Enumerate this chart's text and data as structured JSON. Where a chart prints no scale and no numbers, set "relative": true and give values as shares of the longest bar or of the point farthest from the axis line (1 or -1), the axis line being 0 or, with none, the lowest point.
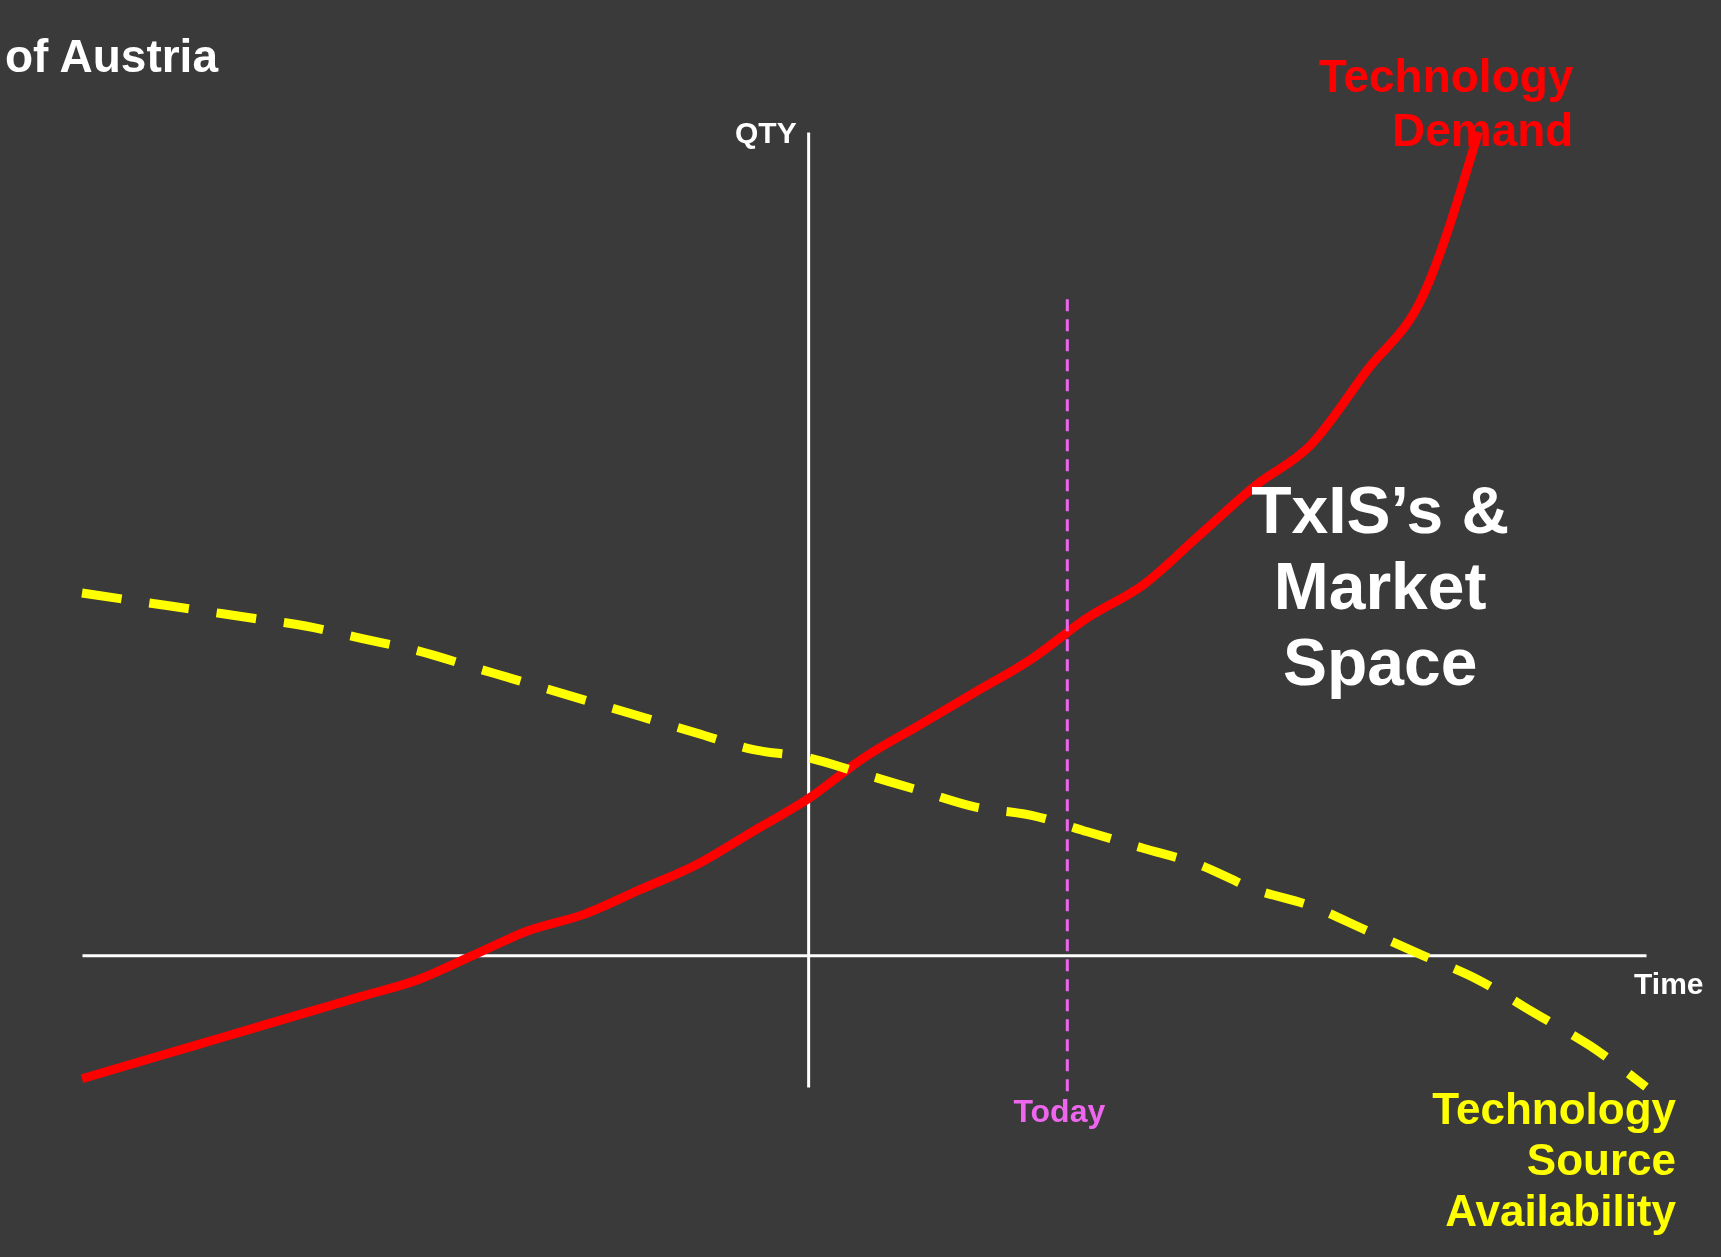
{
  "chart_data": {
    "type": "line",
    "title": "of Austria",
    "xlabel": "Time",
    "ylabel": "QTY",
    "relative": true,
    "categories": [
      null,
      null,
      null,
      null,
      null,
      null,
      null,
      null,
      null,
      null,
      null,
      null,
      null,
      null,
      null,
      null,
      null,
      null,
      null,
      null,
      null,
      null,
      null,
      null,
      null,
      null,
      null,
      null,
      null
    ],
    "series": [
      {
        "name": "Technology Demand",
        "color": "#ff0000",
        "line_style": "solid",
        "values": [
          -0.15,
          -0.13,
          -0.11,
          -0.09,
          -0.07,
          -0.05,
          -0.03,
          0.0,
          0.03,
          0.05,
          0.08,
          0.11,
          0.15,
          0.19,
          0.24,
          0.28,
          0.32,
          0.36,
          0.41,
          0.45,
          0.51,
          0.57,
          0.62,
          0.71,
          0.8,
          1.0,
          null,
          null,
          null
        ]
      },
      {
        "name": "Technology Source Availability",
        "color": "#ffff00",
        "line_style": "dashed",
        "values": [
          0.44,
          0.43,
          0.42,
          0.41,
          0.4,
          0.385,
          0.37,
          0.35,
          0.33,
          0.31,
          0.29,
          0.27,
          0.25,
          0.24,
          0.22,
          0.2,
          0.18,
          0.17,
          0.15,
          0.13,
          0.11,
          0.08,
          0.06,
          0.03,
          0.0,
          -0.03,
          -0.07,
          -0.11,
          -0.16
        ]
      }
    ],
    "ref_lines": [
      {
        "axis": "x",
        "label": "Today",
        "color": "#ee66ee",
        "line_style": "dashed"
      }
    ],
    "annotations": [
      "TxIS’s & Market Space"
    ],
    "legend": false
  }
}
